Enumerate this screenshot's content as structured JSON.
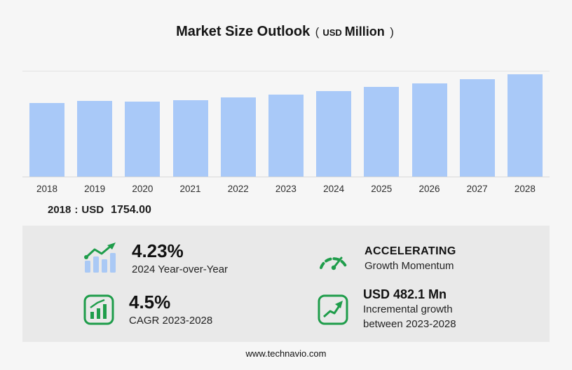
{
  "page": {
    "background": "#f6f6f6",
    "panel_background": "#e9e9e9",
    "accent_green": "#1f9d4b",
    "bar_blue": "#a9c9f8"
  },
  "title": {
    "main": "Market Size Outlook",
    "open_paren": "(",
    "currency": "USD",
    "unit": "Million",
    "close_paren": ")"
  },
  "chart_data": {
    "type": "bar",
    "title": "Market Size Outlook (USD Million)",
    "categories": [
      "2018",
      "2019",
      "2020",
      "2021",
      "2022",
      "2023",
      "2024",
      "2025",
      "2026",
      "2027",
      "2028"
    ],
    "values": [
      1754,
      1805,
      1782,
      1821,
      1884,
      1958,
      2041,
      2127,
      2219,
      2323,
      2441
    ],
    "labeled_point": {
      "year": "2018",
      "currency": "USD",
      "value": "1754.00"
    },
    "bar_color": "#a9c9f8",
    "ylim": [
      0,
      2500
    ],
    "grid": "top gridline and baseline only",
    "legend": "none",
    "xlabel": "",
    "ylabel": ""
  },
  "callout": {
    "year": "2018",
    "separator": ":",
    "currency": "USD",
    "value": "1754.00"
  },
  "stats": {
    "yoy": {
      "value": "4.23%",
      "label": "2024 Year-over-Year",
      "icon": "bar-chart-trend-up-icon"
    },
    "momentum": {
      "title": "ACCELERATING",
      "label": "Growth Momentum",
      "icon": "speedometer-icon"
    },
    "cagr": {
      "value": "4.5%",
      "label": "CAGR 2023-2028",
      "icon": "boxed-bar-chart-icon"
    },
    "incremental": {
      "value": "USD 482.1 Mn",
      "line1": "Incremental growth",
      "line2": "between 2023-2028",
      "icon": "boxed-line-chart-arrow-icon"
    }
  },
  "footer": {
    "url": "www.technavio.com"
  }
}
